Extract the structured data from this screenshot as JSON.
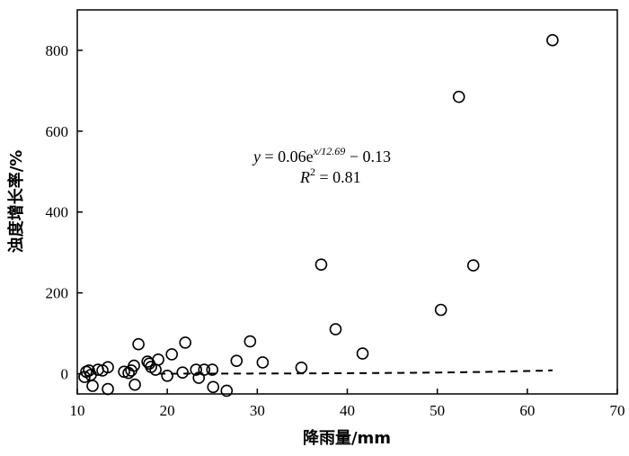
{
  "chart_data": {
    "type": "scatter",
    "xlabel": "降雨量/mm",
    "ylabel": "浊度增长率/%",
    "xlim": [
      10,
      70
    ],
    "ylim": [
      -50,
      900
    ],
    "xticks": [
      10,
      20,
      30,
      40,
      50,
      60,
      70
    ],
    "yticks": [
      0,
      200,
      400,
      600,
      800
    ],
    "grid": false,
    "legend": "none",
    "marker": "open-circle",
    "points": [
      {
        "x": 10.8,
        "y": -8
      },
      {
        "x": 11.0,
        "y": 5
      },
      {
        "x": 11.3,
        "y": 8
      },
      {
        "x": 11.5,
        "y": -3
      },
      {
        "x": 11.7,
        "y": -30
      },
      {
        "x": 12.3,
        "y": 10
      },
      {
        "x": 12.8,
        "y": 8
      },
      {
        "x": 13.4,
        "y": 16
      },
      {
        "x": 13.4,
        "y": -38
      },
      {
        "x": 15.2,
        "y": 5
      },
      {
        "x": 15.7,
        "y": 2
      },
      {
        "x": 16.0,
        "y": 8
      },
      {
        "x": 16.3,
        "y": 20
      },
      {
        "x": 16.4,
        "y": -27
      },
      {
        "x": 16.8,
        "y": 73
      },
      {
        "x": 17.8,
        "y": 30
      },
      {
        "x": 18.0,
        "y": 25
      },
      {
        "x": 18.2,
        "y": 17
      },
      {
        "x": 18.7,
        "y": 10
      },
      {
        "x": 19.0,
        "y": 35
      },
      {
        "x": 20.0,
        "y": -5
      },
      {
        "x": 20.5,
        "y": 48
      },
      {
        "x": 21.7,
        "y": 3
      },
      {
        "x": 22.0,
        "y": 77
      },
      {
        "x": 23.2,
        "y": 10
      },
      {
        "x": 23.5,
        "y": -10
      },
      {
        "x": 24.1,
        "y": 10
      },
      {
        "x": 25.0,
        "y": 10
      },
      {
        "x": 25.1,
        "y": -33
      },
      {
        "x": 26.6,
        "y": -42
      },
      {
        "x": 27.7,
        "y": 32
      },
      {
        "x": 29.2,
        "y": 80
      },
      {
        "x": 30.6,
        "y": 28
      },
      {
        "x": 34.9,
        "y": 15
      },
      {
        "x": 37.1,
        "y": 270
      },
      {
        "x": 38.7,
        "y": 110
      },
      {
        "x": 41.7,
        "y": 50
      },
      {
        "x": 50.4,
        "y": 158
      },
      {
        "x": 52.4,
        "y": 685
      },
      {
        "x": 54.0,
        "y": 268
      },
      {
        "x": 62.8,
        "y": 825
      }
    ],
    "fit": {
      "style": "dashed",
      "a": 0.06,
      "b": 12.69,
      "c": -0.13,
      "x_from": 19,
      "x_to": 62.8,
      "equation": {
        "y_var": "y",
        "eq_text": " = 0.06e",
        "exponent": "x/12.69",
        "tail": " − 0.13"
      },
      "r2": {
        "r_var": "R",
        "sup": "2",
        "value_text": " = 0.81"
      }
    }
  }
}
